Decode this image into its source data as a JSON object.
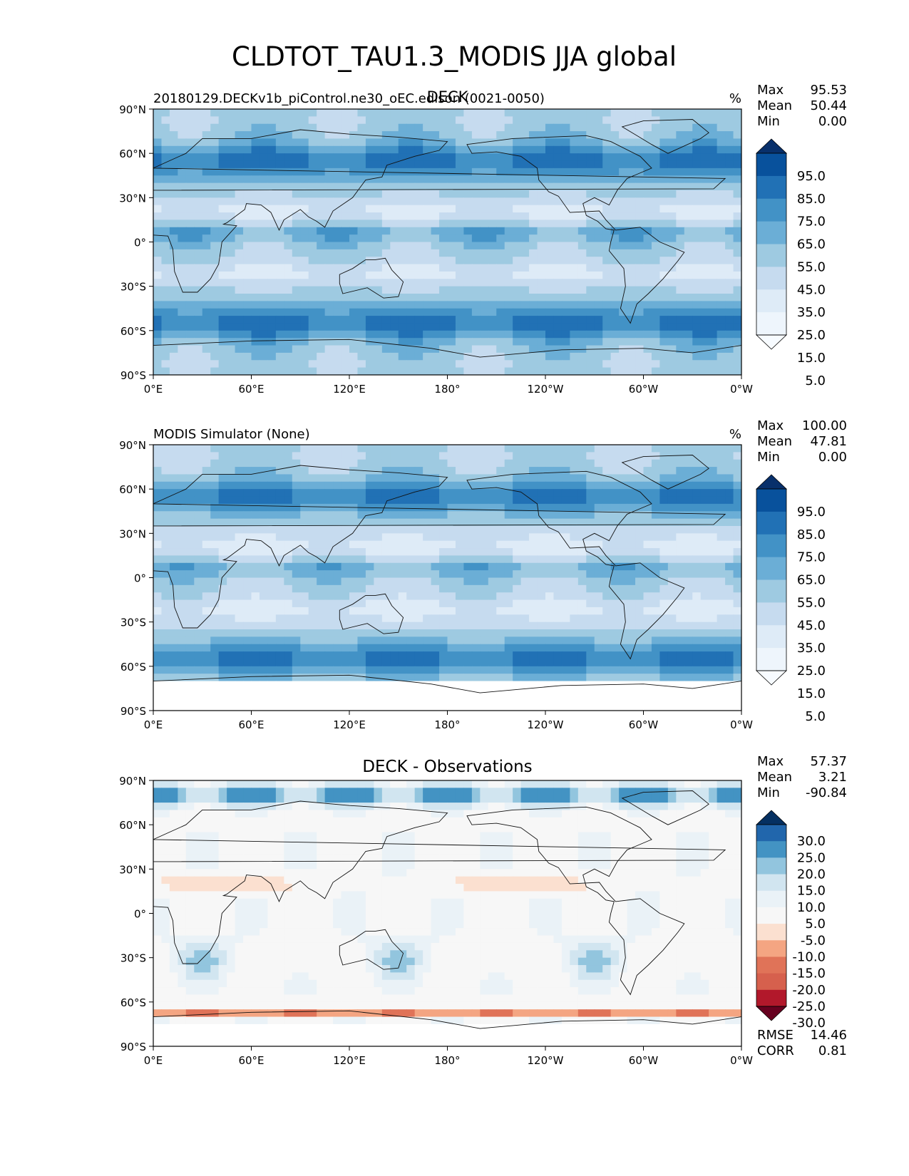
{
  "figure_title": "CLDTOT_TAU1.3_MODIS JJA global",
  "chart_data": [
    {
      "type": "heatmap",
      "panel_title": "DECK",
      "left_label": "20180129.DECKv1b_piControl.ne30_oEC.edison (0021-0050)",
      "units": "%",
      "stats": {
        "max_label": "Max",
        "max": "95.53",
        "mean_label": "Mean",
        "mean": "50.44",
        "min_label": "Min",
        "min": "0.00"
      },
      "colorbar_labels": [
        "95.0",
        "85.0",
        "75.0",
        "65.0",
        "55.0",
        "45.0",
        "35.0",
        "25.0",
        "15.0",
        "5.0"
      ],
      "colorbar_colors": [
        "#08306b",
        "#08519c",
        "#2171b5",
        "#4292c6",
        "#6baed6",
        "#9ecae1",
        "#c6dbef",
        "#deebf7",
        "#eef5fc",
        "#f7fbff"
      ],
      "xticks": [
        "0°E",
        "60°E",
        "120°E",
        "180°",
        "120°W",
        "60°W",
        "0°W"
      ],
      "yticks": [
        "90°N",
        "60°N",
        "30°N",
        "0°",
        "30°S",
        "60°S",
        "90°S"
      ]
    },
    {
      "type": "heatmap",
      "panel_title": "",
      "left_label": "MODIS Simulator (None)",
      "units": "%",
      "stats": {
        "max_label": "Max",
        "max": "100.00",
        "mean_label": "Mean",
        "mean": "47.81",
        "min_label": "Min",
        "min": "0.00"
      },
      "colorbar_labels": [
        "95.0",
        "85.0",
        "75.0",
        "65.0",
        "55.0",
        "45.0",
        "35.0",
        "25.0",
        "15.0",
        "5.0"
      ],
      "colorbar_colors": [
        "#08306b",
        "#08519c",
        "#2171b5",
        "#4292c6",
        "#6baed6",
        "#9ecae1",
        "#c6dbef",
        "#deebf7",
        "#eef5fc",
        "#f7fbff"
      ],
      "xticks": [
        "0°E",
        "60°E",
        "120°E",
        "180°",
        "120°W",
        "60°W",
        "0°W"
      ],
      "yticks": [
        "90°N",
        "60°N",
        "30°N",
        "0°",
        "30°S",
        "60°S",
        "90°S"
      ]
    },
    {
      "type": "heatmap",
      "panel_title": "DECK - Observations",
      "left_label": "",
      "units": "",
      "stats": {
        "max_label": "Max",
        "max": "57.37",
        "mean_label": "Mean",
        "mean": "3.21",
        "min_label": "Min",
        "min": "-90.84"
      },
      "colorbar_labels": [
        "30.0",
        "25.0",
        "20.0",
        "15.0",
        "10.0",
        "5.0",
        "-5.0",
        "-10.0",
        "-15.0",
        "-20.0",
        "-25.0",
        "-30.0"
      ],
      "colorbar_colors": [
        "#053061",
        "#2166ac",
        "#4393c3",
        "#92c5de",
        "#d1e5f0",
        "#eaf2f7",
        "#f7f7f7",
        "#fbe0d0",
        "#f4a582",
        "#e07358",
        "#d6604d",
        "#b2182b",
        "#67001f"
      ],
      "xticks": [
        "0°E",
        "60°E",
        "120°E",
        "180°",
        "120°W",
        "60°W",
        "0°W"
      ],
      "yticks": [
        "90°N",
        "60°N",
        "30°N",
        "0°",
        "30°S",
        "60°S",
        "90°S"
      ],
      "rmse_label": "RMSE",
      "rmse": "14.46",
      "corr_label": "CORR",
      "corr": "0.81"
    }
  ]
}
